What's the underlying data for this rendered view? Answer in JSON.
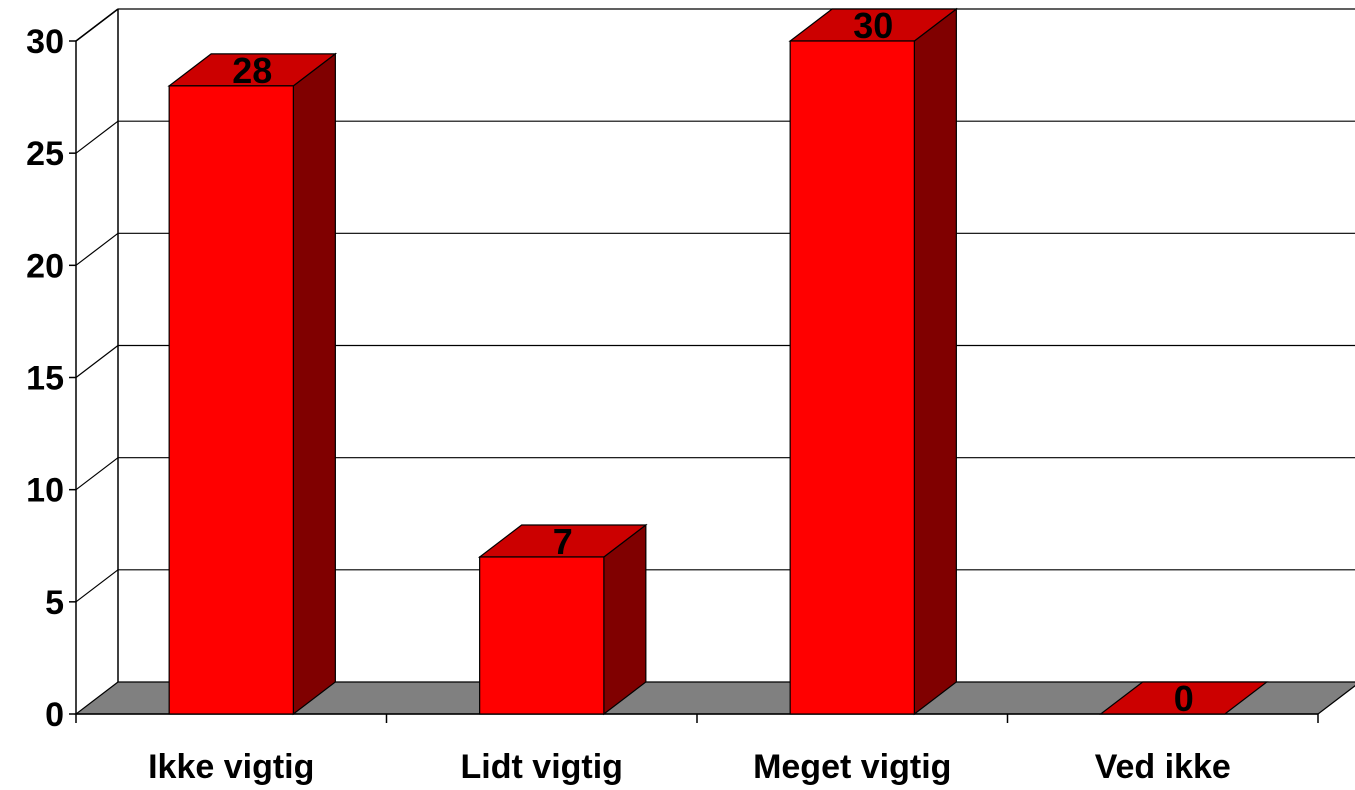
{
  "chart_data": {
    "type": "bar",
    "style": "3d-column",
    "categories": [
      "Ikke vigtig",
      "Lidt vigtig",
      "Meget vigtig",
      "Ved ikke"
    ],
    "values": [
      28,
      7,
      30,
      0
    ],
    "ylim": [
      0,
      30
    ],
    "yticks": [
      "0",
      "5",
      "10",
      "15",
      "20",
      "25",
      "30"
    ],
    "data_labels": [
      "28",
      "7",
      "30",
      "0"
    ],
    "grid": true,
    "legend": "none",
    "colors": {
      "bar_front": "#ff0000",
      "bar_top": "#cc0000",
      "bar_side": "#800000",
      "floor": "#808080",
      "gridline": "#000000"
    }
  }
}
